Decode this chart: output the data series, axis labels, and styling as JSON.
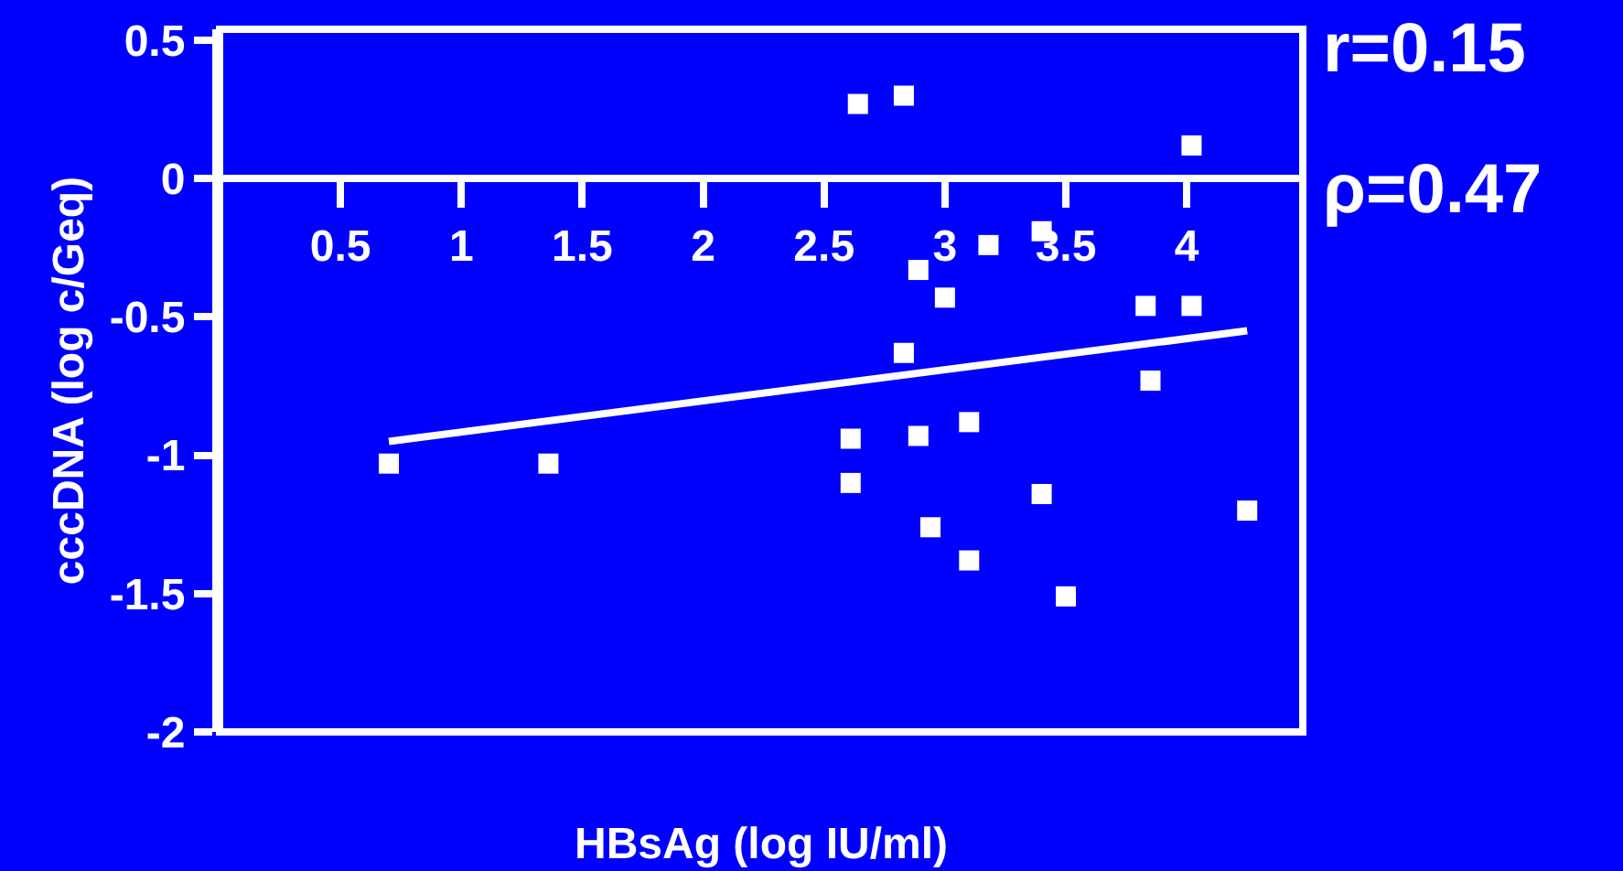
{
  "chart_data": {
    "type": "scatter",
    "xlabel": "HBsAg (log IU/ml)",
    "ylabel": "cccDNA (log c/Geq)",
    "xlim": [
      0,
      4.48
    ],
    "ylim": [
      -2,
      0.54
    ],
    "xticks": [
      0.5,
      1,
      1.5,
      2,
      2.5,
      3,
      3.5,
      4
    ],
    "yticks": [
      -2,
      -1.5,
      -1,
      -0.5,
      0,
      0.5
    ],
    "grid": false,
    "legend": false,
    "marker": "square",
    "annotations": [
      "r=0.15",
      "ρ=0.47"
    ],
    "series": [
      {
        "color": "#ffffff",
        "x": [
          0.7,
          1.36,
          2.64,
          2.83,
          4.02,
          2.89,
          3.0,
          3.18,
          3.4,
          3.83,
          4.02,
          2.83,
          3.85,
          3.1,
          2.61,
          2.89,
          2.61,
          3.4,
          4.25,
          2.94,
          3.1,
          3.5
        ],
        "values": [
          -1.03,
          -1.03,
          0.27,
          0.3,
          0.12,
          -0.33,
          -0.43,
          -0.24,
          -0.19,
          -0.46,
          -0.46,
          -0.63,
          -0.73,
          -0.88,
          -0.94,
          -0.93,
          -1.1,
          -1.14,
          -1.2,
          -1.26,
          -1.38,
          -1.51
        ]
      },
      {
        "type": "line",
        "color": "#ffffff",
        "line_style": "solid",
        "marker": "none",
        "x": [
          0.7,
          4.25
        ],
        "values": [
          -0.95,
          -0.55
        ]
      }
    ]
  }
}
